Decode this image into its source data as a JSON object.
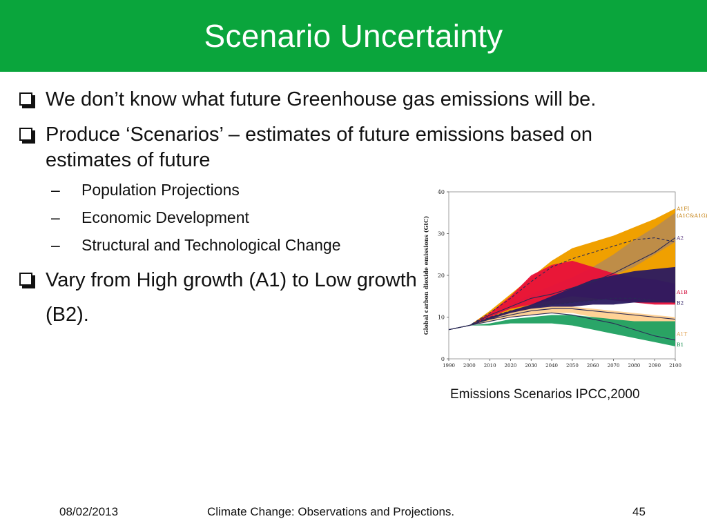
{
  "slide": {
    "title": "Scenario Uncertainty",
    "bullets": [
      {
        "text": "We don’t know what future Greenhouse gas emissions will be."
      },
      {
        "text": "Produce ‘Scenarios’ – estimates of future emissions based on estimates of future"
      }
    ],
    "sub_bullets": [
      "Population Projections",
      "Economic Development",
      "Structural and Technological Change"
    ],
    "bullet3": "Vary from High growth (A1) to Low growth (B2).",
    "dash": "–",
    "caption": "Emissions Scenarios IPCC,2000"
  },
  "footer": {
    "date": "08/02/2013",
    "title": "Climate Change: Observations and Projections.",
    "page": "45"
  },
  "colors": {
    "title_bar": "#0aa53c",
    "A1FI": "#f0a000",
    "A1B": "#e8103a",
    "A1T": "#ffd090",
    "B1": "#1fa060",
    "B2": "#2a1a60",
    "A2_band": "#b58a55"
  },
  "chart_data": {
    "type": "area",
    "ylabel": "Global carbon dioxide emissions (GtC)",
    "x": [
      1990,
      2000,
      2010,
      2020,
      2030,
      2040,
      2050,
      2060,
      2070,
      2080,
      2090,
      2100
    ],
    "yticks": [
      0,
      10,
      20,
      30,
      40
    ],
    "ylim": [
      0,
      40
    ],
    "series": [
      {
        "name": "A1FI",
        "label2": "(A1C&A1G)",
        "lower": [
          7,
          8,
          9,
          11,
          12,
          13,
          13.5,
          14,
          14.5,
          15,
          15.5,
          16
        ],
        "upper": [
          7,
          8,
          11.5,
          15.5,
          19.5,
          23.5,
          26.5,
          28,
          29.5,
          31.5,
          33.5,
          36
        ]
      },
      {
        "name": "A2",
        "lower": [
          7,
          8,
          10,
          12,
          14,
          15,
          16.5,
          18,
          20,
          22,
          25,
          28
        ],
        "upper": [
          7,
          8,
          10.5,
          13,
          15.5,
          17.5,
          19.5,
          22,
          25,
          28.5,
          31.5,
          35
        ]
      },
      {
        "name": "A1B",
        "lower": [
          7,
          8,
          10,
          12,
          13,
          14,
          15,
          14.5,
          14,
          13.5,
          13,
          13
        ],
        "upper": [
          7,
          8,
          11,
          15,
          20,
          22.5,
          23.5,
          22,
          20.5,
          19.5,
          19,
          18
        ]
      },
      {
        "name": "B2",
        "lower": [
          7,
          8,
          9.5,
          10.5,
          11.5,
          12,
          12.5,
          13,
          13,
          13.5,
          13.5,
          13.5
        ],
        "upper": [
          7,
          8,
          10,
          11.5,
          13,
          15,
          17,
          19,
          20,
          21,
          21.5,
          22
        ]
      },
      {
        "name": "A1T",
        "lower": [
          7,
          8,
          9,
          10,
          10.5,
          11,
          11,
          10,
          8.5,
          7,
          6,
          5
        ],
        "upper": [
          7,
          8,
          9.5,
          11,
          12,
          12.5,
          12.5,
          12,
          11.5,
          11,
          10.5,
          10
        ]
      },
      {
        "name": "B1",
        "lower": [
          7,
          8,
          8,
          8.5,
          8.5,
          8.5,
          8,
          7,
          6,
          5,
          4,
          3
        ],
        "upper": [
          7,
          8,
          8.5,
          9.5,
          10,
          10.5,
          10.5,
          10,
          9.5,
          9,
          9,
          9
        ]
      }
    ],
    "lines": [
      {
        "style": "dashed",
        "y": [
          7,
          8,
          11,
          14.5,
          18.5,
          22,
          24,
          25.5,
          27,
          28.5,
          29,
          28
        ]
      },
      {
        "style": "solid",
        "y": [
          7,
          8,
          10.5,
          12.5,
          14.5,
          15.5,
          17,
          18.5,
          20.5,
          23,
          25.5,
          29
        ]
      },
      {
        "style": "dashed",
        "y": [
          7,
          8,
          10,
          11.5,
          12.5,
          13,
          13.5,
          14,
          14.5,
          14.5,
          14,
          13.5
        ]
      },
      {
        "style": "solid",
        "y": [
          7,
          8,
          9.5,
          10.5,
          11.5,
          12,
          12,
          11.5,
          11,
          10.5,
          10,
          9.5
        ]
      },
      {
        "style": "solid",
        "y": [
          7,
          8,
          9,
          10,
          10.5,
          11,
          10.5,
          9.5,
          8.5,
          7,
          5.5,
          4.5
        ]
      }
    ]
  }
}
